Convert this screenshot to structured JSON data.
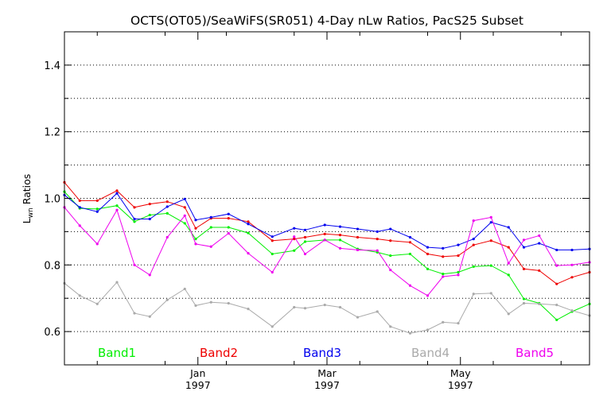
{
  "chart_data": {
    "type": "line",
    "title": "OCTS(OT05)/SeaWiFS(SR051) 4-Day nLw Ratios, PacS25 Subset",
    "ylabel_main": "L",
    "ylabel_sub": "wn",
    "ylabel_rest": " Ratios",
    "ylim": [
      0.5,
      1.5
    ],
    "yticks": [
      0.6,
      0.8,
      1.0,
      1.2,
      1.4
    ],
    "ytick_labels": [
      "0.6",
      "0.8",
      "1.0",
      "1.2",
      "1.4"
    ],
    "ygrid": [
      0.6,
      0.7,
      0.8,
      0.9,
      1.0,
      1.1,
      1.2,
      1.3,
      1.4
    ],
    "x_unit": "days since 1996-11-01",
    "xlim": [
      0,
      240
    ],
    "xtick_minor": [
      15,
      46,
      74,
      105,
      135,
      166,
      196,
      227
    ],
    "xticks": [
      {
        "x": 61,
        "month": "Jan",
        "year": "1997"
      },
      {
        "x": 120,
        "month": "Mar",
        "year": "1997"
      },
      {
        "x": 181,
        "month": "May",
        "year": "1997"
      }
    ],
    "grid": true,
    "legend_placement": "bottom",
    "series": [
      {
        "name": "Band1",
        "color": "#00ee00",
        "x": [
          0,
          7,
          15,
          24,
          32,
          39,
          47,
          55,
          60,
          67,
          75,
          84,
          95,
          105,
          110,
          119,
          126,
          134,
          143,
          149,
          158,
          166,
          173,
          180,
          187,
          195,
          203,
          210,
          217,
          225,
          232,
          240
        ],
        "y": [
          1.02,
          0.97,
          0.968,
          0.978,
          0.93,
          0.95,
          0.955,
          0.925,
          0.878,
          0.913,
          0.913,
          0.896,
          0.833,
          0.843,
          0.87,
          0.875,
          0.875,
          0.848,
          0.838,
          0.828,
          0.833,
          0.788,
          0.773,
          0.778,
          0.795,
          0.798,
          0.77,
          0.698,
          0.685,
          0.635,
          0.66,
          0.683
        ]
      },
      {
        "name": "Band2",
        "color": "#ee0000",
        "x": [
          0,
          7,
          15,
          24,
          32,
          39,
          47,
          55,
          60,
          67,
          75,
          84,
          95,
          105,
          110,
          119,
          126,
          134,
          143,
          149,
          158,
          166,
          173,
          180,
          187,
          195,
          203,
          210,
          217,
          225,
          232,
          240
        ],
        "y": [
          1.048,
          0.993,
          0.993,
          1.023,
          0.973,
          0.983,
          0.99,
          0.973,
          0.91,
          0.94,
          0.94,
          0.93,
          0.873,
          0.878,
          0.883,
          0.893,
          0.89,
          0.883,
          0.878,
          0.873,
          0.868,
          0.833,
          0.825,
          0.828,
          0.86,
          0.873,
          0.853,
          0.788,
          0.783,
          0.743,
          0.763,
          0.778
        ]
      },
      {
        "name": "Band3",
        "color": "#0000ee",
        "x": [
          0,
          7,
          15,
          24,
          32,
          39,
          47,
          55,
          60,
          67,
          75,
          84,
          95,
          105,
          110,
          119,
          126,
          134,
          143,
          149,
          158,
          166,
          173,
          180,
          187,
          195,
          203,
          210,
          217,
          225,
          232,
          240
        ],
        "y": [
          1.01,
          0.973,
          0.96,
          1.015,
          0.938,
          0.938,
          0.975,
          0.998,
          0.935,
          0.943,
          0.953,
          0.923,
          0.885,
          0.91,
          0.905,
          0.92,
          0.915,
          0.908,
          0.9,
          0.908,
          0.883,
          0.853,
          0.85,
          0.86,
          0.878,
          0.928,
          0.913,
          0.853,
          0.865,
          0.845,
          0.845,
          0.848
        ]
      },
      {
        "name": "Band4",
        "color": "#aaaaaa",
        "x": [
          0,
          7,
          15,
          24,
          32,
          39,
          47,
          55,
          60,
          67,
          75,
          84,
          95,
          105,
          110,
          119,
          126,
          134,
          143,
          149,
          158,
          166,
          173,
          180,
          187,
          195,
          203,
          210,
          217,
          225,
          232,
          240
        ],
        "y": [
          0.745,
          0.708,
          0.683,
          0.748,
          0.655,
          0.645,
          0.695,
          0.728,
          0.678,
          0.688,
          0.685,
          0.668,
          0.615,
          0.673,
          0.67,
          0.68,
          0.673,
          0.643,
          0.66,
          0.615,
          0.595,
          0.605,
          0.628,
          0.625,
          0.713,
          0.715,
          0.653,
          0.685,
          0.683,
          0.68,
          0.663,
          0.648
        ]
      },
      {
        "name": "Band5",
        "color": "#ee00ee",
        "x": [
          0,
          7,
          15,
          24,
          32,
          39,
          47,
          55,
          60,
          67,
          75,
          84,
          95,
          105,
          110,
          119,
          126,
          134,
          143,
          149,
          158,
          166,
          173,
          180,
          187,
          195,
          203,
          210,
          217,
          225,
          232,
          240
        ],
        "y": [
          0.973,
          0.918,
          0.863,
          0.965,
          0.8,
          0.77,
          0.883,
          0.948,
          0.863,
          0.855,
          0.895,
          0.835,
          0.778,
          0.885,
          0.833,
          0.875,
          0.85,
          0.845,
          0.843,
          0.785,
          0.738,
          0.708,
          0.765,
          0.77,
          0.933,
          0.943,
          0.805,
          0.875,
          0.888,
          0.798,
          0.8,
          0.808
        ]
      }
    ]
  }
}
